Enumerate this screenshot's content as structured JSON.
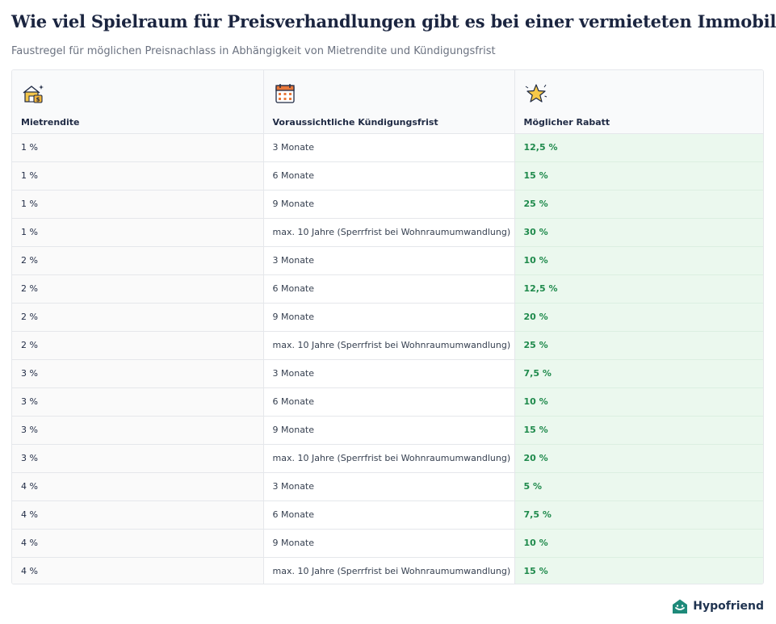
{
  "title": "Wie viel Spielraum für Preisverhandlungen gibt es bei einer vermieteten Immobilie?",
  "subtitle": "Faustregel für möglichen Preisnachlass in Abhängigkeit von Mietrendite und Kündigungsfrist",
  "icons": {
    "col1": "house-money-icon",
    "col2": "calendar-icon",
    "col3": "sparkle-star-icon",
    "brand": "hypofriend-logo-icon"
  },
  "colors": {
    "rabatt_text": "#1f8a4c",
    "rabatt_bg": "#ebf8ee",
    "title": "#1b2540"
  },
  "brand": "Hypofriend",
  "chart_data": {
    "type": "table",
    "columns": [
      "Mietrendite",
      "Voraussichtliche Kündigungsfrist",
      "Möglicher Rabatt"
    ],
    "rows": [
      [
        "1 %",
        "3 Monate",
        "12,5 %"
      ],
      [
        "1 %",
        "6 Monate",
        "15 %"
      ],
      [
        "1 %",
        "9 Monate",
        "25 %"
      ],
      [
        "1 %",
        "max. 10 Jahre  (Sperrfrist bei Wohnraumumwandlung)",
        "30 %"
      ],
      [
        "2 %",
        "3 Monate",
        "10 %"
      ],
      [
        "2 %",
        "6 Monate",
        "12,5 %"
      ],
      [
        "2 %",
        "9 Monate",
        "20 %"
      ],
      [
        "2 %",
        "max. 10 Jahre  (Sperrfrist bei Wohnraumumwandlung)",
        "25 %"
      ],
      [
        "3 %",
        "3 Monate",
        "7,5 %"
      ],
      [
        "3 %",
        "6 Monate",
        "10 %"
      ],
      [
        "3 %",
        "9 Monate",
        "15 %"
      ],
      [
        "3 %",
        "max. 10 Jahre  (Sperrfrist bei Wohnraumumwandlung)",
        "20 %"
      ],
      [
        "4 %",
        "3 Monate",
        "5 %"
      ],
      [
        "4 %",
        "6 Monate",
        "7,5 %"
      ],
      [
        "4 %",
        "9 Monate",
        "10 %"
      ],
      [
        "4 %",
        "max. 10 Jahre  (Sperrfrist bei Wohnraumumwandlung)",
        "15 %"
      ]
    ]
  }
}
